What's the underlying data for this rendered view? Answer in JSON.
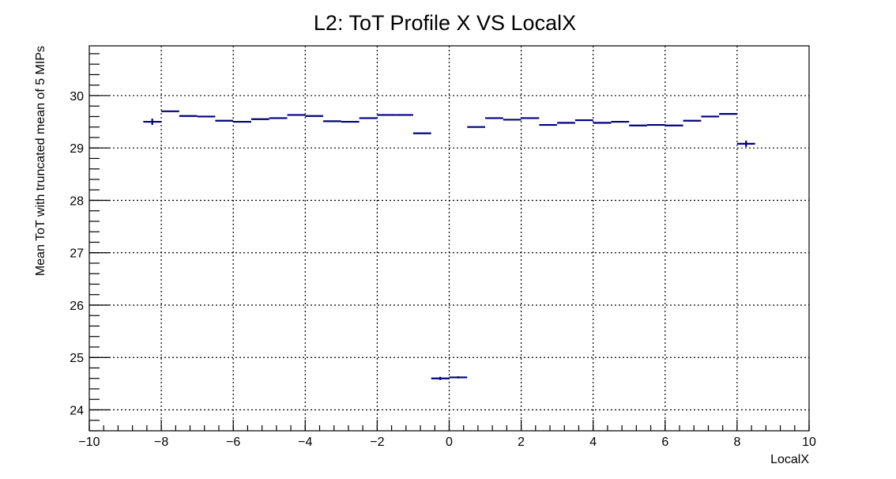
{
  "chart_data": {
    "type": "profile",
    "title": "L2: ToT Profile X VS LocalX",
    "xlabel": "LocalX",
    "ylabel": "Mean ToT with truncated mean of 5 MIPs",
    "xlim": [
      -10,
      10
    ],
    "ylim": [
      23.6,
      30.95
    ],
    "x_ticks": [
      -10,
      -8,
      -6,
      -4,
      -2,
      0,
      2,
      4,
      6,
      8,
      10
    ],
    "x_tick_labels": [
      "−10",
      "−8",
      "−6",
      "−4",
      "−2",
      "0",
      "2",
      "4",
      "6",
      "8",
      "10"
    ],
    "y_ticks": [
      24,
      25,
      26,
      27,
      28,
      29,
      30
    ],
    "y_tick_labels": [
      "24",
      "25",
      "26",
      "27",
      "28",
      "29",
      "30"
    ],
    "grid": true,
    "bin_width": 0.5,
    "series": [
      {
        "color": "#000080",
        "x": [
          -8.25,
          -7.75,
          -7.25,
          -6.75,
          -6.25,
          -5.75,
          -5.25,
          -4.75,
          -4.25,
          -3.75,
          -3.25,
          -2.75,
          -2.25,
          -1.75,
          -1.25,
          -0.75,
          -0.25,
          0.25,
          0.75,
          1.25,
          1.75,
          2.25,
          2.75,
          3.25,
          3.75,
          4.25,
          4.75,
          5.25,
          5.75,
          6.25,
          6.75,
          7.25,
          7.75,
          8.25
        ],
        "y": [
          29.5,
          29.7,
          29.61,
          29.6,
          29.52,
          29.5,
          29.55,
          29.57,
          29.63,
          29.61,
          29.51,
          29.5,
          29.57,
          29.63,
          29.63,
          29.28,
          24.6,
          24.62,
          29.4,
          29.57,
          29.54,
          29.57,
          29.44,
          29.48,
          29.53,
          29.48,
          29.5,
          29.43,
          29.44,
          29.43,
          29.52,
          29.6,
          29.65,
          29.08
        ],
        "yerr": [
          0.06,
          0.01,
          0.01,
          0.01,
          0.01,
          0.01,
          0.01,
          0.01,
          0.01,
          0.01,
          0.01,
          0.01,
          0.01,
          0.01,
          0.01,
          0.01,
          0.03,
          0.02,
          0.01,
          0.01,
          0.01,
          0.01,
          0.01,
          0.01,
          0.01,
          0.01,
          0.01,
          0.01,
          0.01,
          0.01,
          0.01,
          0.01,
          0.01,
          0.06
        ]
      }
    ]
  }
}
